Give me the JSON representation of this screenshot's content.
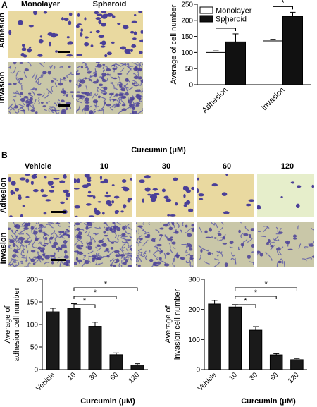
{
  "panel_a": {
    "letter": "A",
    "columns": [
      "Monolayer",
      "Spheroid"
    ],
    "rows": [
      "Adhesion",
      "Invasion"
    ]
  },
  "panel_b": {
    "letter": "B",
    "header": "Curcumin (μM)",
    "columns": [
      "Vehicle",
      "10",
      "30",
      "60",
      "120"
    ],
    "rows": [
      "Adhesion",
      "Invasion"
    ]
  },
  "colors": {
    "adhesion_bg": "#e9d9a0",
    "invasion_bg": "#c9c7a8",
    "cell": "#4a3f98",
    "bar": "#1a1a1a"
  },
  "chart_data": [
    {
      "id": "a-chart",
      "type": "bar",
      "categories": [
        "Adhesion",
        "Invasion"
      ],
      "series": [
        {
          "name": "Monolayer",
          "values": [
            100,
            136
          ],
          "errors": [
            5,
            5
          ],
          "color": "#ffffff"
        },
        {
          "name": "Spheroid",
          "values": [
            133,
            212
          ],
          "errors": [
            25,
            13
          ],
          "color": "#111111"
        }
      ],
      "ylabel": "Average of cell number",
      "ylim": [
        0,
        250
      ],
      "yticks": [
        0,
        50,
        100,
        150,
        200,
        250
      ],
      "legend": "top-left",
      "significance": [
        "*",
        "*"
      ]
    },
    {
      "id": "b-adhesion-chart",
      "type": "bar",
      "categories": [
        "Vehicle",
        "10",
        "30",
        "60",
        "120"
      ],
      "values": [
        128,
        136,
        96,
        33,
        10
      ],
      "errors": [
        8,
        10,
        9,
        4,
        3
      ],
      "xlabel": "Curcumin (μM)",
      "ylabel": "Average of adhesion cell number",
      "ylabel_lines": [
        "Average of",
        "adhesion cell number"
      ],
      "ylim": [
        0,
        200
      ],
      "yticks": [
        0,
        50,
        100,
        150,
        200
      ],
      "significance": [
        "*",
        "*",
        "*"
      ]
    },
    {
      "id": "b-invasion-chart",
      "type": "bar",
      "categories": [
        "Vehicle",
        "10",
        "30",
        "60",
        "120"
      ],
      "values": [
        218,
        208,
        131,
        49,
        33
      ],
      "errors": [
        12,
        8,
        12,
        4,
        4
      ],
      "xlabel": "Curcumin (μM)",
      "ylabel": "Average of invasion cell number",
      "ylabel_lines": [
        "Average of",
        "invasion cell number"
      ],
      "ylim": [
        0,
        300
      ],
      "yticks": [
        0,
        100,
        200,
        300
      ],
      "significance": [
        "*",
        "*",
        "*"
      ]
    }
  ]
}
